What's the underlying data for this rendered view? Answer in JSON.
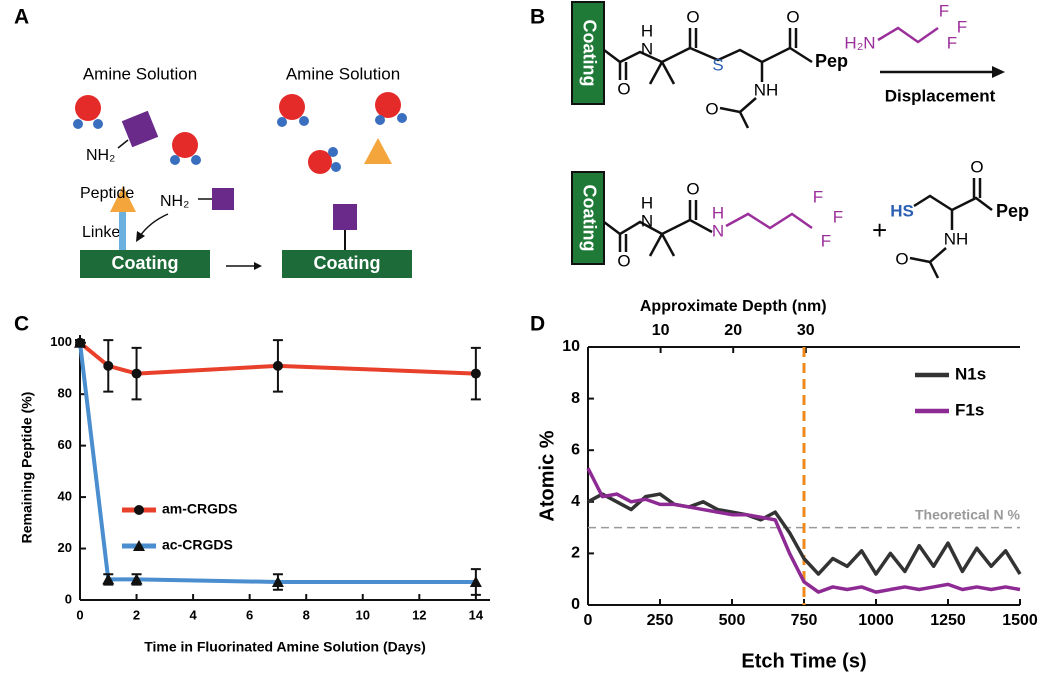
{
  "panel_a": {
    "label": "A",
    "solution_labels": [
      "Amine Solution",
      "Amine Solution"
    ],
    "amine_labels": [
      "NH₂",
      "NH₂"
    ],
    "peptide": "Peptide",
    "linker": "Linker",
    "coating_labels": [
      "Coating",
      "Coating"
    ]
  },
  "panel_b": {
    "label": "B",
    "coating_labels": [
      "Coating",
      "Coating"
    ],
    "reactant_atoms": [
      "N",
      "H",
      "O",
      "O",
      "S",
      "O",
      "NH",
      "O",
      "Pep"
    ],
    "reagent_atoms": [
      "H₂N",
      "F",
      "F",
      "F"
    ],
    "arrow_label": "Displacement",
    "product_atoms": [
      "N",
      "H",
      "O",
      "O",
      "N",
      "H",
      "F",
      "F",
      "F"
    ],
    "plus": "+",
    "thiol_atoms": [
      "HS",
      "O",
      "Pep",
      "NH",
      "O"
    ]
  },
  "chart_data": [
    {
      "type": "line",
      "panel_label": "C",
      "xlabel": "Time in Fluorinated Amine Solution (Days)",
      "ylabel": "Remaining Peptide (%)",
      "x": [
        0,
        1,
        2,
        7,
        14
      ],
      "series": [
        {
          "name": "am-CRGDS",
          "color": "#e8402a",
          "marker": "circle",
          "values": [
            100,
            91,
            88,
            91,
            88
          ],
          "errors": [
            1,
            10,
            10,
            10,
            10
          ]
        },
        {
          "name": "ac-CRGDS",
          "color": "#4a8ed0",
          "marker": "triangle",
          "values": [
            100,
            8,
            8,
            7,
            7
          ],
          "errors": [
            1,
            2,
            2,
            3,
            5
          ]
        }
      ],
      "xlim": [
        0,
        14.5
      ],
      "xticks": [
        0,
        2,
        4,
        6,
        8,
        10,
        12,
        14
      ],
      "ylim": [
        0,
        103
      ],
      "yticks": [
        0,
        20,
        40,
        60,
        80,
        100
      ],
      "legend": "lower-left"
    },
    {
      "type": "line",
      "panel_label": "D",
      "xlabel": "Etch Time (s)",
      "ylabel": "Atomic %",
      "x2label": "Approximate Depth (nm)",
      "x": [
        0,
        50,
        100,
        150,
        200,
        250,
        300,
        350,
        400,
        450,
        500,
        550,
        600,
        650,
        700,
        750,
        800,
        850,
        900,
        950,
        1000,
        1050,
        1100,
        1150,
        1200,
        1250,
        1300,
        1350,
        1400,
        1450,
        1500
      ],
      "series": [
        {
          "name": "N1s",
          "color": "#333333",
          "values": [
            4.0,
            4.3,
            4.0,
            3.7,
            4.2,
            4.3,
            3.9,
            3.8,
            4.0,
            3.7,
            3.6,
            3.5,
            3.3,
            3.6,
            2.8,
            1.8,
            1.2,
            1.8,
            1.5,
            2.1,
            1.2,
            2.0,
            1.3,
            2.3,
            1.5,
            2.4,
            1.3,
            2.2,
            1.5,
            2.1,
            1.2
          ]
        },
        {
          "name": "F1s",
          "color": "#8e2a94",
          "values": [
            5.3,
            4.2,
            4.3,
            4.0,
            4.1,
            3.9,
            3.9,
            3.8,
            3.7,
            3.6,
            3.5,
            3.5,
            3.4,
            3.3,
            2.0,
            0.9,
            0.5,
            0.7,
            0.6,
            0.7,
            0.5,
            0.6,
            0.7,
            0.6,
            0.7,
            0.8,
            0.6,
            0.7,
            0.6,
            0.7,
            0.6
          ]
        }
      ],
      "xlim": [
        0,
        1500
      ],
      "xticks": [
        0,
        250,
        500,
        750,
        1000,
        1250,
        1500
      ],
      "ylim": [
        0,
        10
      ],
      "yticks": [
        0,
        2,
        4,
        6,
        8,
        10
      ],
      "x2lim": [
        0,
        59.5
      ],
      "x2ticks": [
        10,
        20,
        30
      ],
      "hlines": [
        {
          "value": 3,
          "label": "Theoretical N %",
          "color": "#999999"
        }
      ],
      "vlines": [
        {
          "value": 750,
          "color": "#f08a1c"
        }
      ],
      "legend": "upper-right"
    }
  ]
}
